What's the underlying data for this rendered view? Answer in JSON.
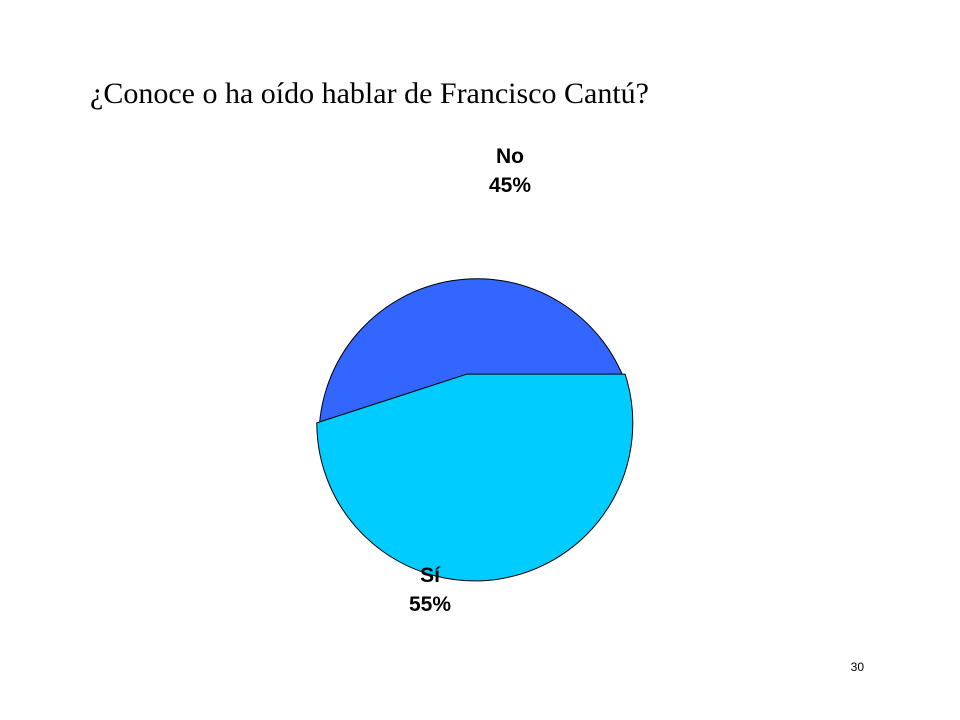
{
  "slide": {
    "title": "¿Conoce o ha oído hablar de Francisco Cantú?",
    "page_number": "30"
  },
  "chart_data": {
    "type": "pie",
    "title": "¿Conoce o ha oído hablar de Francisco Cantú?",
    "exploded": true,
    "slices": [
      {
        "label": "No",
        "value": 45,
        "value_label": "45%",
        "color": "#3366FF"
      },
      {
        "label": "Sí",
        "value": 55,
        "value_label": "55%",
        "color": "#00CCFF"
      }
    ]
  }
}
